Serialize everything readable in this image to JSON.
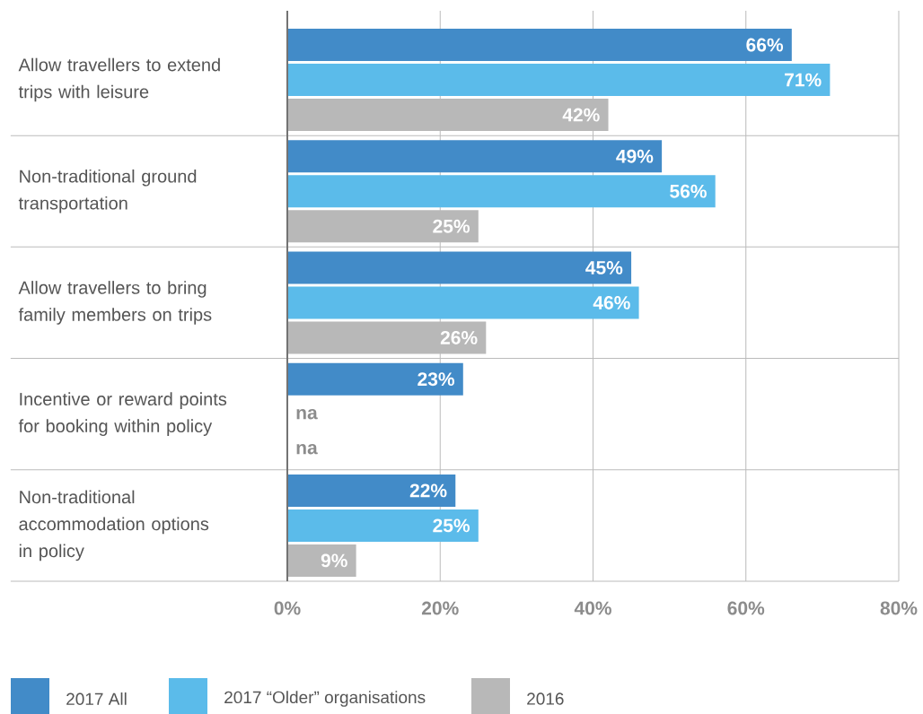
{
  "chart_data": {
    "type": "bar",
    "orientation": "horizontal",
    "categories": [
      "Allow travellers to extend trips with leisure",
      "Non-traditional ground transportation",
      "Allow travellers to bring family members on trips",
      "Incentive or reward points for booking within policy",
      "Non-traditional accommodation options in policy"
    ],
    "series": [
      {
        "name": "2017 All",
        "color": "#428bc8",
        "values": [
          66,
          49,
          45,
          23,
          22
        ],
        "value_labels": [
          "66%",
          "49%",
          "45%",
          "23%",
          "22%"
        ]
      },
      {
        "name": "2017 “Older” organisations",
        "color": "#5bbbea",
        "values": [
          71,
          56,
          46,
          null,
          25
        ],
        "value_labels": [
          "71%",
          "56%",
          "46%",
          "na",
          "25%"
        ]
      },
      {
        "name": "2016",
        "color": "#b8b8b8",
        "values": [
          42,
          25,
          26,
          null,
          9
        ],
        "value_labels": [
          "42%",
          "25%",
          "26%",
          "na",
          "9%"
        ]
      }
    ],
    "xlim": [
      0,
      80
    ],
    "xticks": [
      {
        "value": 0,
        "label": "0%"
      },
      {
        "value": 20,
        "label": "20%"
      },
      {
        "value": 40,
        "label": "40%"
      },
      {
        "value": 60,
        "label": "60%"
      },
      {
        "value": 80,
        "label": "80%"
      }
    ],
    "grid": "x",
    "legend": "bottom"
  }
}
